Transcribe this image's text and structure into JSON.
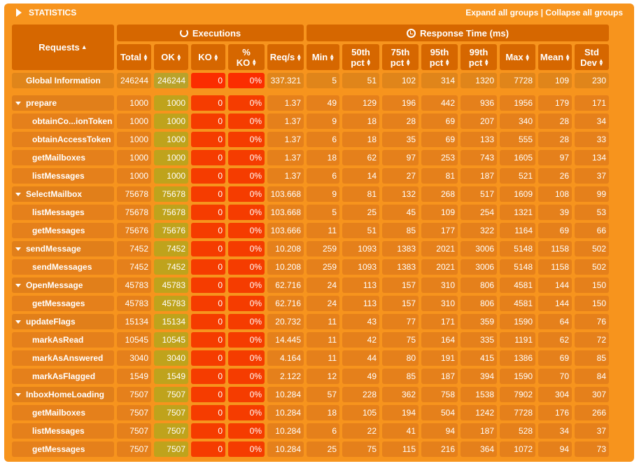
{
  "header": {
    "title": "STATISTICS",
    "expand_all": "Expand all groups",
    "separator": " | ",
    "collapse_all": "Collapse all groups"
  },
  "groups": {
    "executions": "Executions",
    "response_time": "Response Time (ms)"
  },
  "columns": {
    "requests": "Requests",
    "total": "Total",
    "ok": "OK",
    "ko": "KO",
    "pct_ko_line1": "%",
    "pct_ko_line2": "KO",
    "reqs": "Req/s",
    "min": "Min",
    "p50_line1": "50th",
    "p50_line2": "pct",
    "p75_line1": "75th",
    "p75_line2": "pct",
    "p95_line1": "95th",
    "p95_line2": "pct",
    "p99_line1": "99th",
    "p99_line2": "pct",
    "max": "Max",
    "mean": "Mean",
    "std_line1": "Std",
    "std_line2": "Dev"
  },
  "global": [
    "Global Information",
    "246244",
    "246244",
    "0",
    "0%",
    "337.321",
    "5",
    "51",
    "102",
    "314",
    "1320",
    "7728",
    "109",
    "230"
  ],
  "rows": [
    {
      "kind": "group",
      "cells": [
        "prepare",
        "1000",
        "1000",
        "0",
        "0%",
        "1.37",
        "49",
        "129",
        "196",
        "442",
        "936",
        "1956",
        "179",
        "171"
      ]
    },
    {
      "kind": "child",
      "cells": [
        "obtainCo...ionToken",
        "1000",
        "1000",
        "0",
        "0%",
        "1.37",
        "9",
        "18",
        "28",
        "69",
        "207",
        "340",
        "28",
        "34"
      ]
    },
    {
      "kind": "child",
      "cells": [
        "obtainAccessToken",
        "1000",
        "1000",
        "0",
        "0%",
        "1.37",
        "6",
        "18",
        "35",
        "69",
        "133",
        "555",
        "28",
        "33"
      ]
    },
    {
      "kind": "child",
      "cells": [
        "getMailboxes",
        "1000",
        "1000",
        "0",
        "0%",
        "1.37",
        "18",
        "62",
        "97",
        "253",
        "743",
        "1605",
        "97",
        "134"
      ]
    },
    {
      "kind": "child",
      "cells": [
        "listMessages",
        "1000",
        "1000",
        "0",
        "0%",
        "1.37",
        "6",
        "14",
        "27",
        "81",
        "187",
        "521",
        "26",
        "37"
      ]
    },
    {
      "kind": "group",
      "cells": [
        "SelectMailbox",
        "75678",
        "75678",
        "0",
        "0%",
        "103.668",
        "9",
        "81",
        "132",
        "268",
        "517",
        "1609",
        "108",
        "99"
      ]
    },
    {
      "kind": "child",
      "cells": [
        "listMessages",
        "75678",
        "75678",
        "0",
        "0%",
        "103.668",
        "5",
        "25",
        "45",
        "109",
        "254",
        "1321",
        "39",
        "53"
      ]
    },
    {
      "kind": "child",
      "cells": [
        "getMessages",
        "75676",
        "75676",
        "0",
        "0%",
        "103.666",
        "11",
        "51",
        "85",
        "177",
        "322",
        "1164",
        "69",
        "66"
      ]
    },
    {
      "kind": "group",
      "cells": [
        "sendMessage",
        "7452",
        "7452",
        "0",
        "0%",
        "10.208",
        "259",
        "1093",
        "1383",
        "2021",
        "3006",
        "5148",
        "1158",
        "502"
      ]
    },
    {
      "kind": "child",
      "cells": [
        "sendMessages",
        "7452",
        "7452",
        "0",
        "0%",
        "10.208",
        "259",
        "1093",
        "1383",
        "2021",
        "3006",
        "5148",
        "1158",
        "502"
      ]
    },
    {
      "kind": "group",
      "cells": [
        "OpenMessage",
        "45783",
        "45783",
        "0",
        "0%",
        "62.716",
        "24",
        "113",
        "157",
        "310",
        "806",
        "4581",
        "144",
        "150"
      ]
    },
    {
      "kind": "child",
      "cells": [
        "getMessages",
        "45783",
        "45783",
        "0",
        "0%",
        "62.716",
        "24",
        "113",
        "157",
        "310",
        "806",
        "4581",
        "144",
        "150"
      ]
    },
    {
      "kind": "group",
      "cells": [
        "updateFlags",
        "15134",
        "15134",
        "0",
        "0%",
        "20.732",
        "11",
        "43",
        "77",
        "171",
        "359",
        "1590",
        "64",
        "76"
      ]
    },
    {
      "kind": "child",
      "cells": [
        "markAsRead",
        "10545",
        "10545",
        "0",
        "0%",
        "14.445",
        "11",
        "42",
        "75",
        "164",
        "335",
        "1191",
        "62",
        "72"
      ]
    },
    {
      "kind": "child",
      "cells": [
        "markAsAnswered",
        "3040",
        "3040",
        "0",
        "0%",
        "4.164",
        "11",
        "44",
        "80",
        "191",
        "415",
        "1386",
        "69",
        "85"
      ]
    },
    {
      "kind": "child",
      "cells": [
        "markAsFlagged",
        "1549",
        "1549",
        "0",
        "0%",
        "2.122",
        "12",
        "49",
        "85",
        "187",
        "394",
        "1590",
        "70",
        "84"
      ]
    },
    {
      "kind": "group",
      "cells": [
        "InboxHomeLoading",
        "7507",
        "7507",
        "0",
        "0%",
        "10.284",
        "57",
        "228",
        "362",
        "758",
        "1538",
        "7902",
        "304",
        "307"
      ]
    },
    {
      "kind": "child",
      "cells": [
        "getMailboxes",
        "7507",
        "7507",
        "0",
        "0%",
        "10.284",
        "18",
        "105",
        "194",
        "504",
        "1242",
        "7728",
        "176",
        "266"
      ]
    },
    {
      "kind": "child",
      "cells": [
        "listMessages",
        "7507",
        "7507",
        "0",
        "0%",
        "10.284",
        "6",
        "22",
        "41",
        "94",
        "187",
        "528",
        "34",
        "37"
      ]
    },
    {
      "kind": "child",
      "cells": [
        "getMessages",
        "7507",
        "7507",
        "0",
        "0%",
        "10.284",
        "25",
        "75",
        "115",
        "216",
        "364",
        "1072",
        "94",
        "73"
      ]
    }
  ],
  "colors": {
    "panel": "#f7941d",
    "header_cell": "#d66700",
    "row_cell": "#e5801b",
    "ok_cell": "#bfa31c",
    "ko_cell": "#f53c00"
  },
  "icons": {
    "title": "caret-right-icon",
    "executions": "refresh-icon",
    "response_time": "clock-icon",
    "expand_group": "caret-down-icon",
    "sort": "sort-icon"
  }
}
